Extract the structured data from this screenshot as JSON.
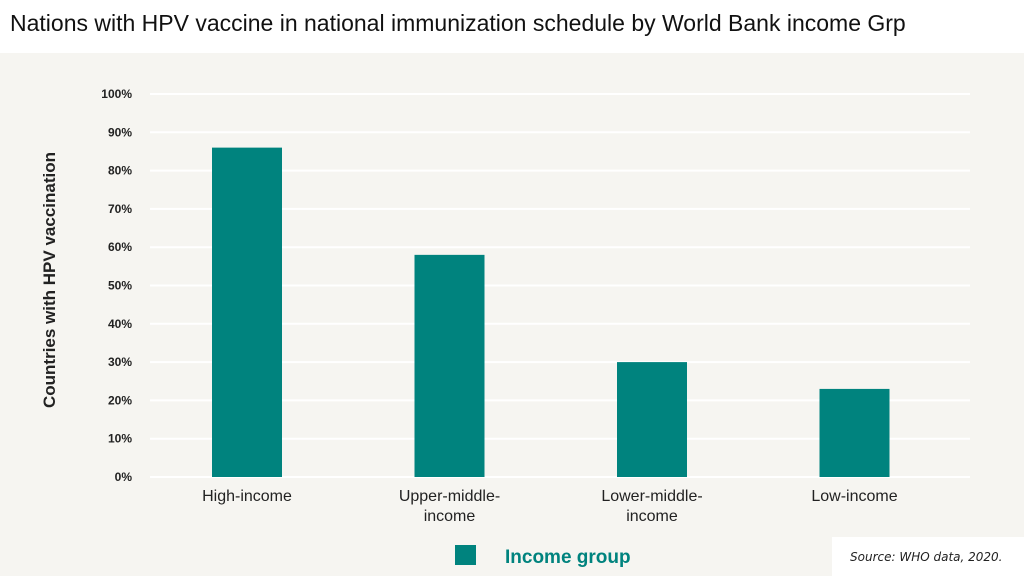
{
  "title": "Nations with HPV vaccine in national immunization schedule by World Bank income Grp",
  "source": "Source: WHO data, 2020.",
  "colors": {
    "bar": "#00837e",
    "legend_text": "#00837e",
    "axis_text": "#222222",
    "grid": "#ffffff",
    "panel_background": "#f6f5f1"
  },
  "chart_data": {
    "type": "bar",
    "categories": [
      [
        "High-income"
      ],
      [
        "Upper-middle-",
        "income"
      ],
      [
        "Lower-middle-",
        "income"
      ],
      [
        "Low-income"
      ]
    ],
    "values": [
      86,
      58,
      30,
      23
    ],
    "ylabel": "Countries with HPV vaccination",
    "ylim": [
      0,
      100
    ],
    "yticks": [
      "0%",
      "10%",
      "20%",
      "30%",
      "40%",
      "50%",
      "60%",
      "70%",
      "80%",
      "90%",
      "100%"
    ],
    "legend": {
      "label": "Income group",
      "placement": "bottom-center"
    },
    "grid": true
  }
}
